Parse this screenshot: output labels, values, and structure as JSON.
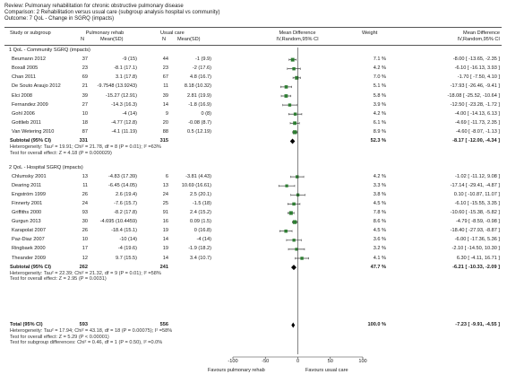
{
  "review": {
    "review_line": "Review:  Pulmonary rehabilitation for chronic obstructive pulmonary disease",
    "comparison_line": "Comparison:  2 Rehabilitation versus usual care (subgroup analysis hospital vs community)",
    "outcome_line": "Outcome:  7 QoL - Change in SGRQ (impacts)"
  },
  "headers": {
    "study": "Study or subgroup",
    "exp": "Pulmonary rehab",
    "exp_n": "N",
    "exp_mean": "Mean(SD)",
    "ctl": "Usual care",
    "ctl_n": "N",
    "ctl_mean": "Mean(SD)",
    "md1": "Mean Difference",
    "md2": "IV,Random,95% CI",
    "weight": "Weight",
    "md3": "Mean Difference",
    "md4": "IV,Random,95% CI"
  },
  "axis": {
    "ticks": [
      "-100",
      "-50",
      "0",
      "50",
      "100"
    ],
    "favours_left": "Favours pulmonary rehab",
    "favours_right": "Favours usual care"
  },
  "chart_data": {
    "type": "forest",
    "xlim": [
      -100,
      100
    ],
    "subgroups": [
      {
        "title": "1 QoL - Community SGRQ (impacts)",
        "studies": [
          {
            "name": "Beumann 2012",
            "exp_n": "37",
            "exp_mean": "-9 (15)",
            "ctl_n": "44",
            "ctl_mean": "-1 (9.9)",
            "weight": "7.1 %",
            "ci_text": "-8.00 [ -13.65, -2.35 ]",
            "md": -8.0,
            "lo": -13.65,
            "hi": -2.35,
            "w": 7.1
          },
          {
            "name": "Boxall 2005",
            "exp_n": "23",
            "exp_mean": "-8.1 (17.1)",
            "ctl_n": "23",
            "ctl_mean": "-2 (17.6)",
            "weight": "4.2 %",
            "ci_text": "-6.10 [ -16.13, 3.93 ]",
            "md": -6.1,
            "lo": -16.13,
            "hi": 3.93,
            "w": 4.2
          },
          {
            "name": "Chan 2011",
            "exp_n": "69",
            "exp_mean": "3.1 (17.8)",
            "ctl_n": "67",
            "ctl_mean": "4.8 (16.7)",
            "weight": "7.0 %",
            "ci_text": "-1.70 [ -7.50, 4.10 ]",
            "md": -1.7,
            "lo": -7.5,
            "hi": 4.1,
            "w": 7.0
          },
          {
            "name": "De Souto Araujo 2012",
            "exp_n": "21",
            "exp_mean": "-9.7548 (13.9243)",
            "ctl_n": "11",
            "ctl_mean": "8.18 (10.32)",
            "weight": "5.1 %",
            "ci_text": "-17.93 [ -26.46, -9.41 ]",
            "md": -17.93,
            "lo": -26.46,
            "hi": -9.41,
            "w": 5.1
          },
          {
            "name": "Elci 2008",
            "exp_n": "39",
            "exp_mean": "-15.27 (12.91)",
            "ctl_n": "39",
            "ctl_mean": "2.81 (19.9)",
            "weight": "5.8 %",
            "ci_text": "-18.08 [ -25.52, -10.64 ]",
            "md": -18.08,
            "lo": -25.52,
            "hi": -10.64,
            "w": 5.8
          },
          {
            "name": "Fernandez 2009",
            "exp_n": "27",
            "exp_mean": "-14.3 (16.3)",
            "ctl_n": "14",
            "ctl_mean": "-1.8 (16.9)",
            "weight": "3.9 %",
            "ci_text": "-12.50 [ -23.28, -1.72 ]",
            "md": -12.5,
            "lo": -23.28,
            "hi": -1.72,
            "w": 3.9
          },
          {
            "name": "Gohl 2006",
            "exp_n": "10",
            "exp_mean": "-4 (14)",
            "ctl_n": "9",
            "ctl_mean": "0 (8)",
            "weight": "4.2 %",
            "ci_text": "-4.00 [ -14.13, 6.13 ]",
            "md": -4.0,
            "lo": -14.13,
            "hi": 6.13,
            "w": 4.2
          },
          {
            "name": "Gottlieb 2011",
            "exp_n": "18",
            "exp_mean": "-4.77 (12.8)",
            "ctl_n": "20",
            "ctl_mean": "-0.08 (8.7)",
            "weight": "6.1 %",
            "ci_text": "-4.69 [ -11.73, 2.35 ]",
            "md": -4.69,
            "lo": -11.73,
            "hi": 2.35,
            "w": 6.1
          },
          {
            "name": "Van Wetering 2010",
            "exp_n": "87",
            "exp_mean": "-4.1 (11.19)",
            "ctl_n": "88",
            "ctl_mean": "0.5 (12.19)",
            "weight": "8.9 %",
            "ci_text": "-4.60 [ -8.07, -1.13 ]",
            "md": -4.6,
            "lo": -8.07,
            "hi": -1.13,
            "w": 8.9
          }
        ],
        "subtotal": {
          "label": "Subtotal (95% CI)",
          "exp_n": "331",
          "ctl_n": "315",
          "weight": "52.3 %",
          "ci_text": "-8.17 [ -12.00, -4.34 ]",
          "md": -8.17,
          "lo": -12.0,
          "hi": -4.34
        },
        "heterogeneity": "Heterogeneity: Tau² = 19.91; Chi² = 21.78, df = 8 (P = 0.01); I² =63%",
        "overall_effect": "Test for overall effect: Z = 4.18 (P = 0.000029)"
      },
      {
        "title": "2 QoL - Hospital SGRQ (impacts)",
        "studies": [
          {
            "name": "Chlumsky 2001",
            "exp_n": "13",
            "exp_mean": "-4.83 (17.39)",
            "ctl_n": "6",
            "ctl_mean": "-3.81 (4.43)",
            "weight": "4.2 %",
            "ci_text": "-1.02 [ -11.12, 9.08 ]",
            "md": -1.02,
            "lo": -11.12,
            "hi": 9.08,
            "w": 4.2
          },
          {
            "name": "Dearing 2011",
            "exp_n": "11",
            "exp_mean": "-6.45 (14.05)",
            "ctl_n": "13",
            "ctl_mean": "10.69 (16.61)",
            "weight": "3.3 %",
            "ci_text": "-17.14 [ -29.41, -4.87 ]",
            "md": -17.14,
            "lo": -29.41,
            "hi": -4.87,
            "w": 3.3
          },
          {
            "name": "Engström 1999",
            "exp_n": "26",
            "exp_mean": "2.6 (19.4)",
            "ctl_n": "24",
            "ctl_mean": "2.5 (20.1)",
            "weight": "3.8 %",
            "ci_text": "0.10 [ -10.87, 11.07 ]",
            "md": 0.1,
            "lo": -10.87,
            "hi": 11.07,
            "w": 3.8
          },
          {
            "name": "Finnerty 2001",
            "exp_n": "24",
            "exp_mean": "-7.6 (15.7)",
            "ctl_n": "25",
            "ctl_mean": "-1.5 (18)",
            "weight": "4.5 %",
            "ci_text": "-6.10 [ -15.55, 3.35 ]",
            "md": -6.1,
            "lo": -15.55,
            "hi": 3.35,
            "w": 4.5
          },
          {
            "name": "Griffiths 2000",
            "exp_n": "93",
            "exp_mean": "-8.2 (17.8)",
            "ctl_n": "91",
            "ctl_mean": "2.4 (15.2)",
            "weight": "7.8 %",
            "ci_text": "-10.60 [ -15.38, -5.82 ]",
            "md": -10.6,
            "lo": -15.38,
            "hi": -5.82,
            "w": 7.8
          },
          {
            "name": "Gurgun 2013",
            "exp_n": "30",
            "exp_mean": "-4.695 (10.4459)",
            "ctl_n": "16",
            "ctl_mean": "0.09 (1.5)",
            "weight": "8.6 %",
            "ci_text": "-4.79 [ -8.59, -0.98 ]",
            "md": -4.79,
            "lo": -8.59,
            "hi": -0.98,
            "w": 8.6
          },
          {
            "name": "Karapolat 2007",
            "exp_n": "26",
            "exp_mean": "-18.4 (15.1)",
            "ctl_n": "19",
            "ctl_mean": "0 (16.8)",
            "weight": "4.5 %",
            "ci_text": "-18.40 [ -27.93, -8.87 ]",
            "md": -18.4,
            "lo": -27.93,
            "hi": -8.87,
            "w": 4.5
          },
          {
            "name": "Paz-Diaz 2007",
            "exp_n": "10",
            "exp_mean": "-10 (14)",
            "ctl_n": "14",
            "ctl_mean": "-4 (14)",
            "weight": "3.6 %",
            "ci_text": "-6.00 [ -17.36, 5.36 ]",
            "md": -6.0,
            "lo": -17.36,
            "hi": 5.36,
            "w": 3.6
          },
          {
            "name": "Ringbaek 2000",
            "exp_n": "17",
            "exp_mean": "-4 (19.6)",
            "ctl_n": "19",
            "ctl_mean": "-1.9 (18.2)",
            "weight": "3.2 %",
            "ci_text": "-2.10 [ -14.50, 10.30 ]",
            "md": -2.1,
            "lo": -14.5,
            "hi": 10.3,
            "w": 3.2
          },
          {
            "name": "Theander 2009",
            "exp_n": "12",
            "exp_mean": "9.7 (15.5)",
            "ctl_n": "14",
            "ctl_mean": "3.4 (10.7)",
            "weight": "4.1 %",
            "ci_text": "6.30 [ -4.11, 16.71 ]",
            "md": 6.3,
            "lo": -4.11,
            "hi": 16.71,
            "w": 4.1
          }
        ],
        "subtotal": {
          "label": "Subtotal (95% CI)",
          "exp_n": "262",
          "ctl_n": "241",
          "weight": "47.7 %",
          "ci_text": "-6.21 [ -10.33, -2.09 ]",
          "md": -6.21,
          "lo": -10.33,
          "hi": -2.09
        },
        "heterogeneity": "Heterogeneity: Tau² = 22.39; Chi² = 21.32, df = 9 (P = 0.01); I² =58%",
        "overall_effect": "Test for overall effect: Z = 2.95 (P = 0.0031)"
      }
    ],
    "total": {
      "label": "Total (95% CI)",
      "exp_n": "593",
      "ctl_n": "556",
      "weight": "100.0 %",
      "ci_text": "-7.23 [ -9.91, -4.55 ]",
      "md": -7.23,
      "lo": -9.91,
      "hi": -4.55,
      "heterogeneity": "Heterogeneity: Tau² = 17.94; Chi² = 43.18, df = 18 (P = 0.00075); I² =58%",
      "overall_effect": "Test for overall effect: Z = 5.29 (P < 0.00001)",
      "subgroup_diff": "Test for subgroup differences: Chi² = 0.46, df = 1 (P = 0.50), I² =0.0%"
    },
    "colors": {
      "study_box": "#2e7d32",
      "diamond": "#000000",
      "ci_line": "#333333"
    }
  }
}
